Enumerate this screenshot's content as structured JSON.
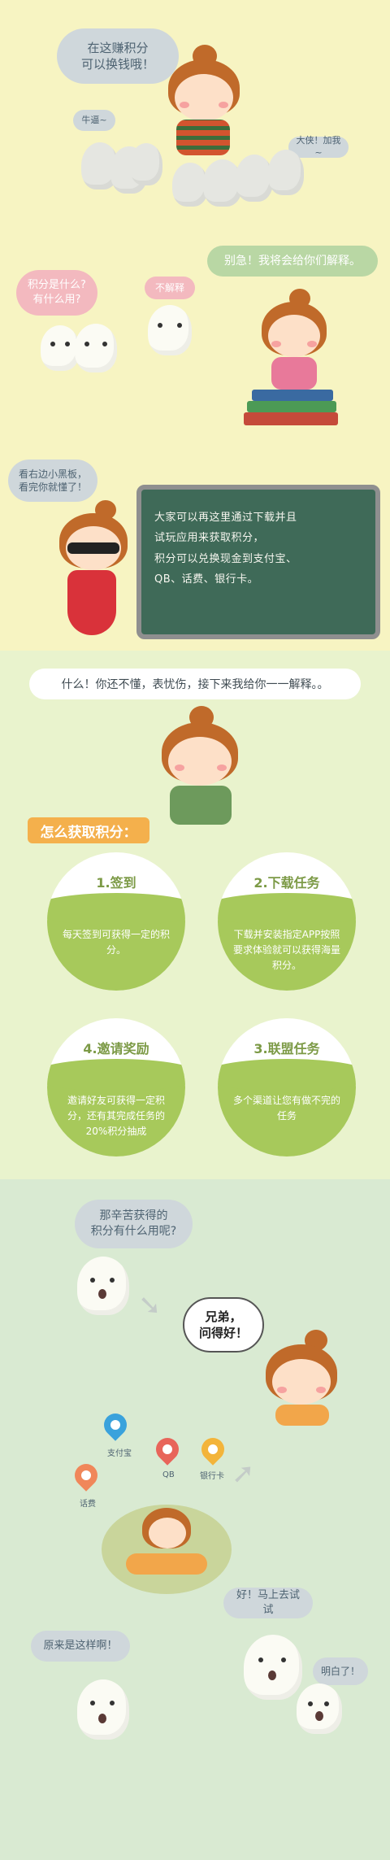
{
  "section1": {
    "bubble_main": [
      "在这赚积分",
      "可以换钱哦！"
    ],
    "bubble_left": "牛逼~",
    "bubble_right": "大侠！加我~",
    "bubble_question": [
      "积分是什么?",
      "有什么用?"
    ],
    "bubble_dont_know": "不解释",
    "bubble_explain": "别急！我将会给你们解释。",
    "bubble_blackboard": [
      "看右边小黑板，",
      "看完你就懂了！"
    ],
    "blackboard_lines": [
      "大家可以再这里通过下载并且",
      "试玩应用来获取积分，",
      "积分可以兑换现金到支付宝、",
      "QB、话费、银行卡。"
    ]
  },
  "section2": {
    "banner": "什么！你还不懂，表忧伤，接下来我给你一一解释。。",
    "ribbon": "怎么获取积分：",
    "methods": [
      {
        "title": "1.签到",
        "desc": "每天签到可获得一定的积分。"
      },
      {
        "title": "2.下载任务",
        "desc": "下载并安装指定APP按照要求体验就可以获得海量积分。"
      },
      {
        "title": "4.邀请奖励",
        "desc": "邀请好友可获得一定积分，还有其完成任务的20%积分抽成"
      },
      {
        "title": "3.联盟任务",
        "desc": "多个渠道让您有做不完的任务"
      }
    ]
  },
  "section3": {
    "bubble_question": [
      "那辛苦获得的",
      "积分有什么用呢?"
    ],
    "bubble_answer": [
      "兄弟，",
      "问得好！"
    ],
    "targets": [
      {
        "label": "支付宝",
        "color": "#3aa2dc"
      },
      {
        "label": "QB",
        "color": "#e8655a"
      },
      {
        "label": "银行卡",
        "color": "#f3b43a"
      },
      {
        "label": "话费",
        "color": "#f0875a"
      }
    ],
    "bubble_try": "好！马上去试试",
    "bubble_realize": "原来是这样啊！",
    "bubble_got_it": "明白了！"
  },
  "colors": {
    "section1_bg": "#f7f4c2",
    "section2_bg": "#e9f3cd",
    "section3_bg": "#d9ead2",
    "circle_green": "#a7c95b",
    "ribbon_orange": "#f4b04c"
  }
}
